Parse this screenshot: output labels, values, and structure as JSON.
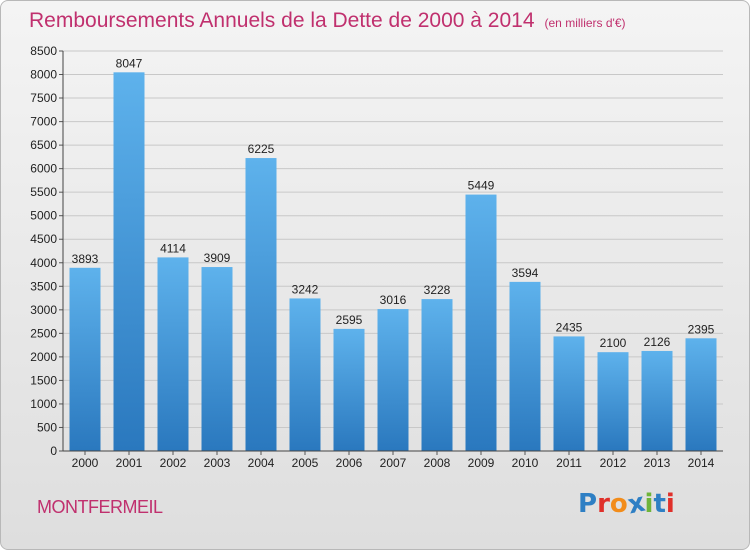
{
  "header": {
    "title": "Remboursements Annuels de la Dette de 2000 à 2014",
    "unit": "(en milliers d'€)"
  },
  "footer": {
    "place": "MONTFERMEIL",
    "brand": "Proxiti",
    "brand_letters": [
      {
        "ch": "P",
        "color": "#2e7fc4"
      },
      {
        "ch": "r",
        "color": "#e0302a"
      },
      {
        "ch": "o",
        "color": "#f28c1a"
      },
      {
        "ch": "x",
        "color": "#2e7fc4"
      },
      {
        "ch": "i",
        "color": "#6fb43a"
      },
      {
        "ch": "t",
        "color": "#2e7fc4"
      },
      {
        "ch": "i",
        "color": "#e0302a"
      }
    ]
  },
  "colors": {
    "accent": "#c0306e",
    "bar_top": "#5eb2ec",
    "bar_bottom": "#2a78be",
    "grid": "#c8c8c8"
  },
  "chart_data": {
    "type": "bar",
    "title": "Remboursements Annuels de la Dette de 2000 à 2014",
    "subtitle": "(en milliers d'€)",
    "xlabel": "",
    "ylabel": "",
    "categories": [
      "2000",
      "2001",
      "2002",
      "2003",
      "2004",
      "2005",
      "2006",
      "2007",
      "2008",
      "2009",
      "2010",
      "2011",
      "2012",
      "2013",
      "2014"
    ],
    "values": [
      3893,
      8047,
      4114,
      3909,
      6225,
      3242,
      2595,
      3016,
      3228,
      5449,
      3594,
      2435,
      2100,
      2126,
      2395
    ],
    "ylim": [
      0,
      8500
    ],
    "yticks": [
      0,
      500,
      1000,
      1500,
      2000,
      2500,
      3000,
      3500,
      4000,
      4500,
      5000,
      5500,
      6000,
      6500,
      7000,
      7500,
      8000,
      8500
    ],
    "grid": true,
    "legend": "none"
  }
}
